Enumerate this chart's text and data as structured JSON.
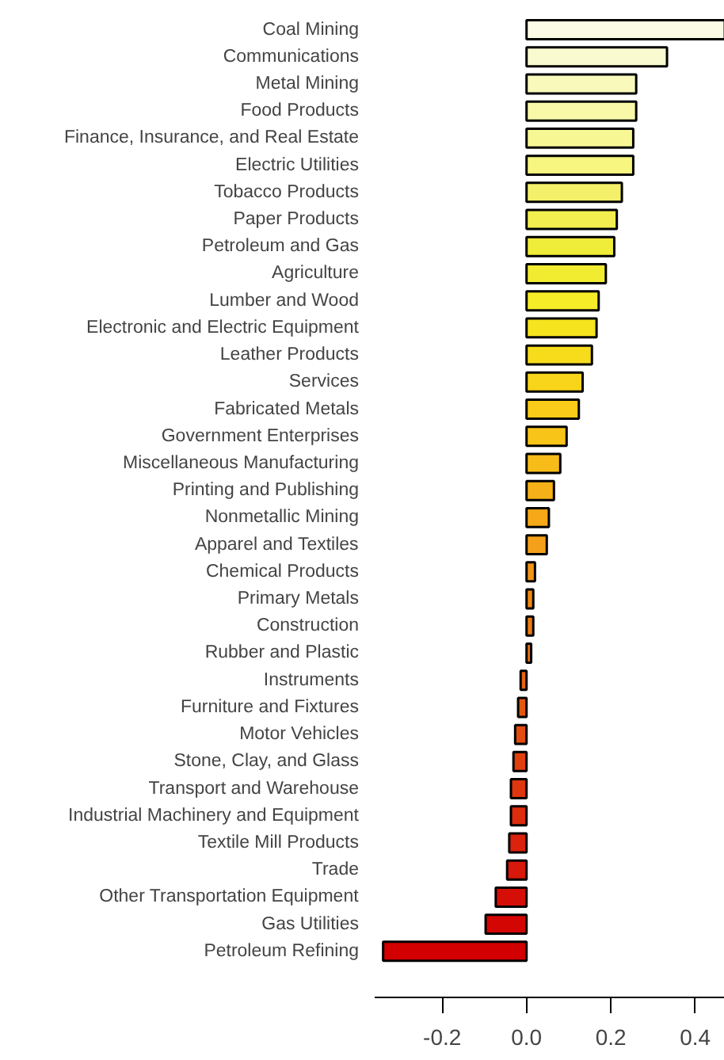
{
  "chart_data": {
    "type": "bar",
    "orientation": "horizontal",
    "categories": [
      "Coal Mining",
      "Communications",
      "Metal Mining",
      "Food Products",
      "Finance, Insurance, and Real Estate",
      "Electric Utilities",
      "Tobacco Products",
      "Paper Products",
      "Petroleum and Gas",
      "Agriculture",
      "Lumber and Wood",
      "Electronic and Electric Equipment",
      "Leather Products",
      "Services",
      "Fabricated Metals",
      "Government Enterprises",
      "Miscellaneous Manufacturing",
      "Printing and Publishing",
      "Nonmetallic Mining",
      "Apparel and Textiles",
      "Chemical Products",
      "Primary Metals",
      "Construction",
      "Rubber and Plastic",
      "Instruments",
      "Furniture and Fixtures",
      "Motor Vehicles",
      "Stone, Clay, and Glass",
      "Transport and Warehouse",
      "Industrial Machinery and Equipment",
      "Textile Mill Products",
      "Trade",
      "Other Transportation Equipment",
      "Gas Utilities",
      "Petroleum Refining"
    ],
    "values": [
      0.47,
      0.333,
      0.26,
      0.26,
      0.253,
      0.253,
      0.226,
      0.214,
      0.208,
      0.188,
      0.171,
      0.166,
      0.155,
      0.133,
      0.124,
      0.095,
      0.08,
      0.065,
      0.053,
      0.048,
      0.02,
      0.016,
      0.016,
      0.011,
      -0.014,
      -0.02,
      -0.027,
      -0.031,
      -0.037,
      -0.037,
      -0.041,
      -0.046,
      -0.073,
      -0.097,
      -0.34
    ],
    "colors": [
      "#fbfbe6",
      "#fafad0",
      "#f9f9bb",
      "#f8f8a8",
      "#f7f794",
      "#f6f680",
      "#f4f06a",
      "#f2ee4f",
      "#f0ec3a",
      "#f2ec30",
      "#f6ec28",
      "#f6e41e",
      "#f7dc1c",
      "#f8d41a",
      "#f8cc18",
      "#f8c418",
      "#f8bc18",
      "#f6b018",
      "#f6a818",
      "#f5a01a",
      "#f29418",
      "#ee8814",
      "#ea7c12",
      "#e87010",
      "#e66410",
      "#e4580e",
      "#e24c0e",
      "#e0400e",
      "#de360e",
      "#dc2c0e",
      "#da220c",
      "#d8180a",
      "#d60e08",
      "#d40604",
      "#d20000"
    ],
    "xlim": [
      -0.36,
      0.47
    ],
    "xticks": [
      -0.2,
      {
        "value": 0,
        "label": "0.0"
      },
      0.2,
      0.4
    ],
    "grid": false
  }
}
